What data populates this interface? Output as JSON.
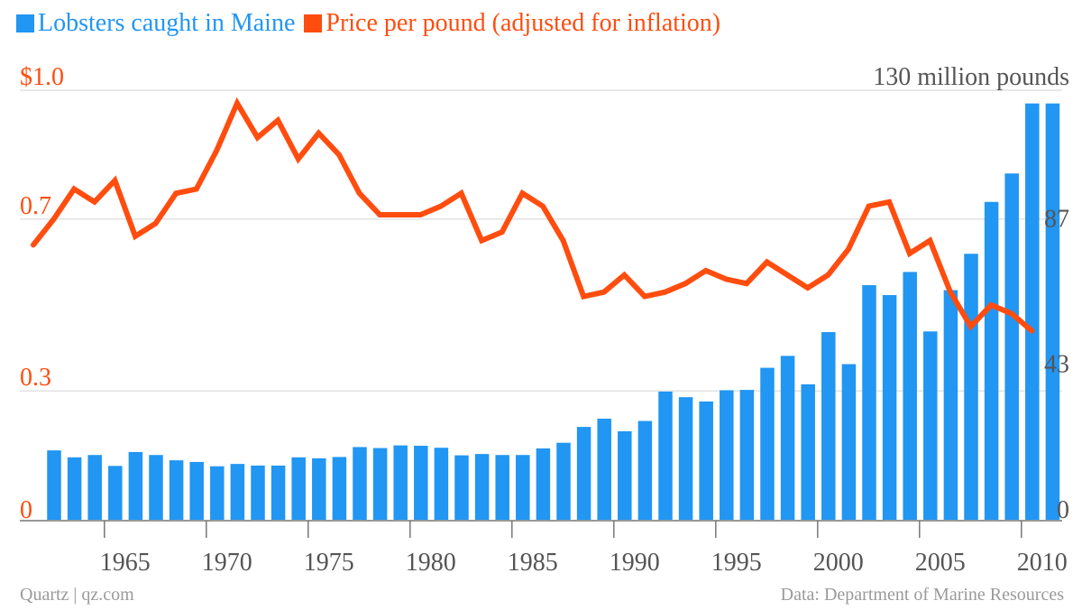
{
  "legend": {
    "catch_label": "Lobsters caught in Maine",
    "price_label": "Price per pound (adjusted for inflation)"
  },
  "colors": {
    "catch": "#2196f3",
    "price": "#ff4d0f",
    "right_axis_text": "#555555",
    "grid": "#e2e2e2",
    "baseline": "#777777",
    "tick_text": "#555555",
    "footer": "#9a9a9a"
  },
  "footer": {
    "source_left": "Quartz | qz.com",
    "source_right": "Data: Department of Marine Resources"
  },
  "chart_data": {
    "type": "bar+line",
    "x_ticks": [
      1965,
      1970,
      1975,
      1980,
      1985,
      1990,
      1995,
      2000,
      2005,
      2010
    ],
    "left_axis": {
      "ticks": [
        {
          "value": 0,
          "label": "0"
        },
        {
          "value": 0.3,
          "label": "0.3"
        },
        {
          "value": 0.7,
          "label": "0.7"
        },
        {
          "value": 1.0,
          "label": "$1.0"
        }
      ],
      "ylim": [
        0,
        1.0
      ]
    },
    "right_axis": {
      "ticks": [
        {
          "value": 0,
          "label": "0"
        },
        {
          "value": 43,
          "label": "43"
        },
        {
          "value": 87,
          "label": "87"
        },
        {
          "value": 130,
          "label": "130 million pounds"
        }
      ],
      "ylim": [
        0,
        130
      ]
    },
    "catch_series": {
      "name": "Lobsters caught in Maine",
      "axis": "right",
      "type": "bar",
      "x": [
        1962,
        1963,
        1964,
        1965,
        1966,
        1967,
        1968,
        1969,
        1970,
        1971,
        1972,
        1973,
        1974,
        1975,
        1976,
        1977,
        1978,
        1979,
        1980,
        1981,
        1982,
        1983,
        1984,
        1985,
        1986,
        1987,
        1988,
        1989,
        1990,
        1991,
        1992,
        1993,
        1994,
        1995,
        1996,
        1997,
        1998,
        1999,
        2000,
        2001,
        2002,
        2003,
        2004,
        2005,
        2006,
        2007,
        2008,
        2009,
        2010,
        2011
      ],
      "values": [
        21.0,
        18.9,
        19.6,
        16.3,
        20.5,
        19.6,
        18.0,
        17.5,
        16.2,
        16.9,
        16.4,
        16.4,
        18.9,
        18.6,
        19.0,
        22.0,
        21.7,
        22.5,
        22.4,
        21.8,
        19.5,
        19.9,
        19.6,
        19.6,
        21.6,
        23.3,
        28.1,
        30.6,
        26.8,
        29.9,
        38.8,
        37.1,
        35.8,
        39.2,
        39.3,
        46.0,
        49.6,
        41.0,
        56.8,
        47.1,
        71.0,
        68.0,
        75.0,
        57.0,
        69.5,
        80.5,
        96.2,
        104.8,
        126.0,
        126.0
      ]
    },
    "price_series": {
      "name": "Price per pound (adjusted for inflation)",
      "axis": "left",
      "type": "line",
      "x": [
        1962,
        1963,
        1964,
        1965,
        1966,
        1967,
        1968,
        1969,
        1970,
        1971,
        1972,
        1973,
        1974,
        1975,
        1976,
        1977,
        1978,
        1979,
        1980,
        1981,
        1982,
        1983,
        1984,
        1985,
        1986,
        1987,
        1988,
        1989,
        1990,
        1991,
        1992,
        1993,
        1994,
        1995,
        1996,
        1997,
        1998,
        1999,
        2000,
        2001,
        2002,
        2003,
        2004,
        2005,
        2006,
        2007,
        2008,
        2009,
        2010,
        2011
      ],
      "values": [
        0.64,
        0.7,
        0.77,
        0.74,
        0.79,
        0.66,
        0.69,
        0.76,
        0.77,
        0.86,
        0.97,
        0.89,
        0.93,
        0.84,
        0.9,
        0.85,
        0.76,
        0.71,
        0.71,
        0.71,
        0.73,
        0.76,
        0.65,
        0.67,
        0.76,
        0.73,
        0.65,
        0.52,
        0.53,
        0.57,
        0.52,
        0.53,
        0.55,
        0.58,
        0.56,
        0.55,
        0.6,
        0.57,
        0.54,
        0.57,
        0.63,
        0.73,
        0.74,
        0.62,
        0.65,
        0.53,
        0.45,
        0.5,
        0.48,
        0.44
      ]
    }
  }
}
